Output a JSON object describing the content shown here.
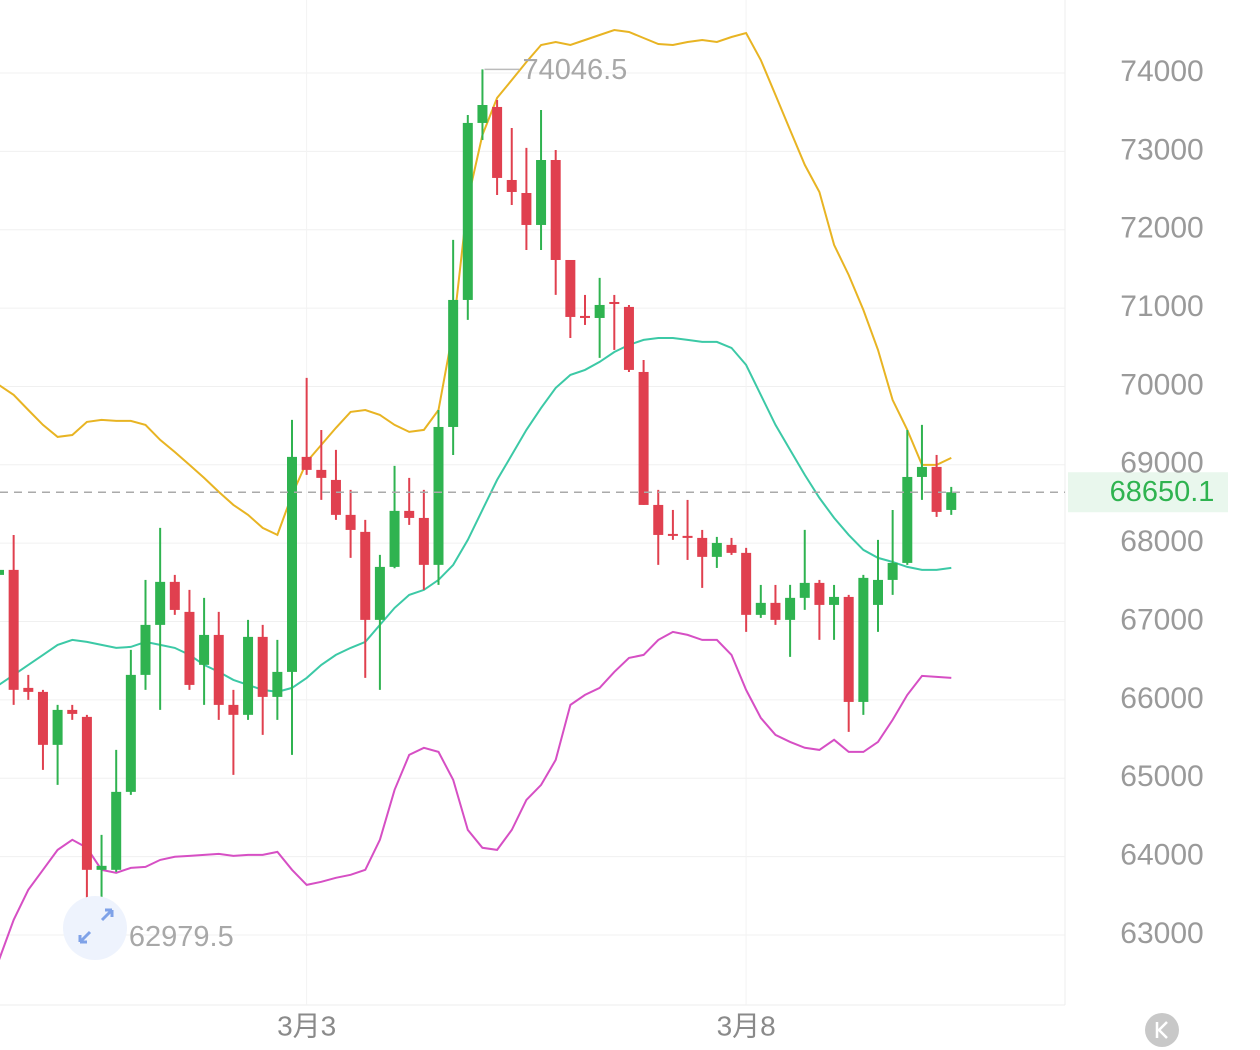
{
  "chart_data": {
    "type": "candlestick",
    "categories": [
      null,
      null,
      null,
      null,
      null,
      null,
      null,
      null,
      null,
      null,
      null,
      null,
      null,
      null,
      null,
      null,
      null,
      null,
      null,
      null,
      null,
      "3月3",
      null,
      null,
      null,
      null,
      null,
      null,
      null,
      null,
      null,
      null,
      null,
      null,
      null,
      null,
      null,
      null,
      null,
      null,
      null,
      null,
      null,
      null,
      null,
      null,
      null,
      null,
      null,
      null,
      null,
      "3月8",
      null,
      null,
      null,
      null,
      null,
      null,
      null,
      null,
      null,
      null,
      null,
      null,
      null,
      null
    ],
    "open": [
      67595,
      67659,
      66153,
      66102,
      65426,
      65872,
      65783,
      63831,
      63831,
      64826,
      66319,
      66957,
      67506,
      67123,
      66447,
      66829,
      65936,
      65809,
      66804,
      66038,
      66357,
      69101,
      68935,
      68807,
      68361,
      68144,
      67021,
      67697,
      68412,
      68322,
      67723,
      69483,
      71104,
      73363,
      73567,
      72635,
      72469,
      72061,
      72890,
      71614,
      70900,
      70874,
      71078,
      71015,
      70185,
      68488,
      68118,
      68093,
      68067,
      67825,
      67978,
      67876,
      67085,
      67238,
      67021,
      67302,
      67493,
      67212,
      67314,
      65974,
      67212,
      67531,
      67748,
      68845,
      68973,
      68424
    ],
    "high": [
      68169,
      68105,
      66319,
      66128,
      65936,
      65936,
      65809,
      64277,
      65362,
      66638,
      67531,
      68195,
      67595,
      67404,
      67302,
      67123,
      66128,
      67021,
      66957,
      66766,
      69573,
      70109,
      69445,
      69190,
      68680,
      68297,
      67850,
      68986,
      68833,
      68680,
      69700,
      71870,
      73465,
      74046.5,
      73656,
      73299,
      73044,
      73528,
      73018,
      71614,
      71168,
      71385,
      71168,
      71040,
      70338,
      68680,
      68424,
      68552,
      68169,
      68080,
      68067,
      67940,
      67467,
      67467,
      67467,
      68169,
      67531,
      67467,
      67340,
      67595,
      68042,
      68424,
      69445,
      69509,
      69126,
      68718
    ],
    "low": [
      67531,
      65936,
      66000,
      65107,
      64915,
      65745,
      62979.5,
      63384,
      63805,
      64788,
      66128,
      65872,
      67085,
      66128,
      65936,
      65745,
      65043,
      65745,
      65553,
      65745,
      65298,
      68871,
      68552,
      68297,
      67812,
      66281,
      66128,
      67680,
      68233,
      67404,
      67467,
      69126,
      70849,
      73146,
      72444,
      72316,
      71742,
      71742,
      71168,
      70619,
      70785,
      70364,
      70466,
      70185,
      68488,
      67723,
      68042,
      67786,
      67429,
      67684,
      67850,
      66868,
      67046,
      66957,
      66549,
      67148,
      66766,
      66766,
      65592,
      65809,
      66868,
      67340,
      67723,
      68552,
      68335,
      68361
    ],
    "close": [
      67659,
      66128,
      66102,
      65426,
      65872,
      65821,
      63831,
      63882,
      64826,
      66319,
      66957,
      67506,
      67148,
      66191,
      66829,
      65936,
      65809,
      66804,
      66038,
      66357,
      69101,
      68935,
      68833,
      68361,
      68169,
      67021,
      67697,
      68412,
      68322,
      67723,
      69483,
      71104,
      73363,
      73592,
      72661,
      72482,
      72061,
      72890,
      71614,
      70887,
      70874,
      71040,
      71053,
      70211,
      68488,
      68105,
      68093,
      68067,
      67825,
      68003,
      67876,
      67085,
      67238,
      67021,
      67302,
      67493,
      67212,
      67314,
      65974,
      67557,
      67531,
      67748,
      68845,
      68973,
      68399,
      68650.1
    ],
    "up_color": "#2fb350",
    "down_color": "#e0404f",
    "bands": [
      {
        "color": "#e8b423",
        "values": [
          70019,
          69892,
          69700,
          69509,
          69356,
          69381,
          69547,
          69573,
          69560,
          69560,
          69509,
          69318,
          69164,
          68999,
          68833,
          68654,
          68488,
          68361,
          68195,
          68105,
          68616,
          69037,
          69254,
          69471,
          69675,
          69700,
          69637,
          69509,
          69420,
          69445,
          69700,
          70721,
          72380,
          73209,
          73682,
          73911,
          74141,
          74358,
          74396,
          74358,
          74422,
          74485,
          74549,
          74524,
          74447,
          74371,
          74358,
          74396,
          74422,
          74396,
          74460,
          74511,
          74166,
          73720,
          73273,
          72827,
          72482,
          71806,
          71423,
          70976,
          70466,
          69828,
          69445,
          68999,
          68999,
          69088
        ]
      },
      {
        "color": "#3cc9a6",
        "values": [
          66191,
          66319,
          66447,
          66574,
          66702,
          66766,
          66740,
          66702,
          66664,
          66676,
          66740,
          66702,
          66664,
          66574,
          66447,
          66357,
          66255,
          66191,
          66128,
          66102,
          66153,
          66281,
          66447,
          66574,
          66664,
          66740,
          66957,
          67174,
          67340,
          67404,
          67531,
          67723,
          68042,
          68424,
          68807,
          69126,
          69445,
          69726,
          69981,
          70147,
          70211,
          70313,
          70440,
          70530,
          70594,
          70619,
          70619,
          70594,
          70568,
          70568,
          70492,
          70275,
          69892,
          69509,
          69190,
          68871,
          68578,
          68322,
          68105,
          67914,
          67812,
          67761,
          67697,
          67659,
          67659,
          67684
        ]
      },
      {
        "color": "#d64fc4",
        "values": [
          62682,
          63193,
          63576,
          63831,
          64086,
          64214,
          64112,
          63831,
          63793,
          63856,
          63869,
          63958,
          63997,
          64009,
          64022,
          64035,
          64009,
          64022,
          64022,
          64060,
          63831,
          63639,
          63678,
          63729,
          63767,
          63831,
          64214,
          64852,
          65298,
          65388,
          65336,
          64979,
          64341,
          64112,
          64086,
          64341,
          64724,
          64915,
          65234,
          65936,
          66064,
          66153,
          66357,
          66536,
          66574,
          66766,
          66868,
          66829,
          66766,
          66766,
          66574,
          66128,
          65770,
          65553,
          65464,
          65388,
          65362,
          65490,
          65336,
          65336,
          65464,
          65745,
          66064,
          66306,
          66293,
          66281
        ]
      }
    ],
    "ylim": [
      62106,
      74932
    ],
    "yticks": [
      63000,
      64000,
      65000,
      66000,
      67000,
      68000,
      69000,
      70000,
      71000,
      72000,
      73000,
      74000
    ],
    "grid": true
  }
}
